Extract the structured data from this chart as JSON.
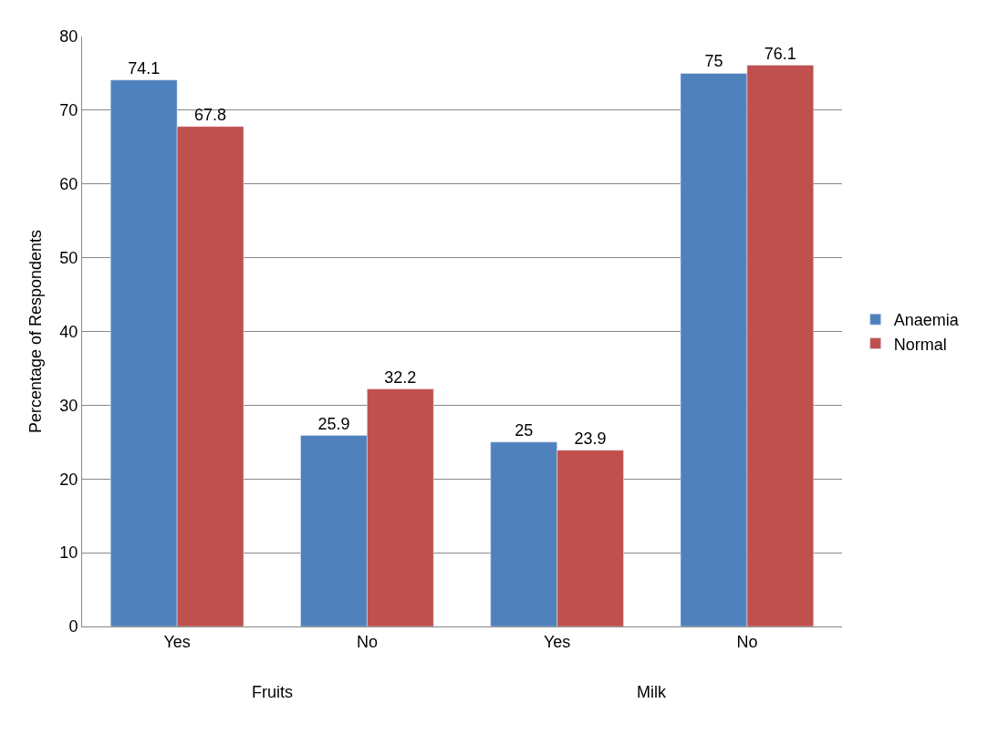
{
  "chart_data": {
    "type": "bar",
    "ylabel": "Percentage of Respondents",
    "categories": [
      "Yes",
      "No",
      "Yes",
      "No"
    ],
    "annotations": [
      "Fruits",
      "Milk"
    ],
    "series": [
      {
        "name": "Anaemia",
        "color": "#4f81bd",
        "values": [
          74.1,
          25.9,
          25,
          75
        ]
      },
      {
        "name": "Normal",
        "color": "#c0504d",
        "values": [
          67.8,
          32.2,
          23.9,
          76.1
        ]
      }
    ],
    "ylim": [
      0,
      80
    ],
    "yticks": [
      0,
      10,
      20,
      30,
      40,
      50,
      60,
      70,
      80
    ],
    "grid": "y",
    "legend": "right",
    "data_labels": true
  }
}
